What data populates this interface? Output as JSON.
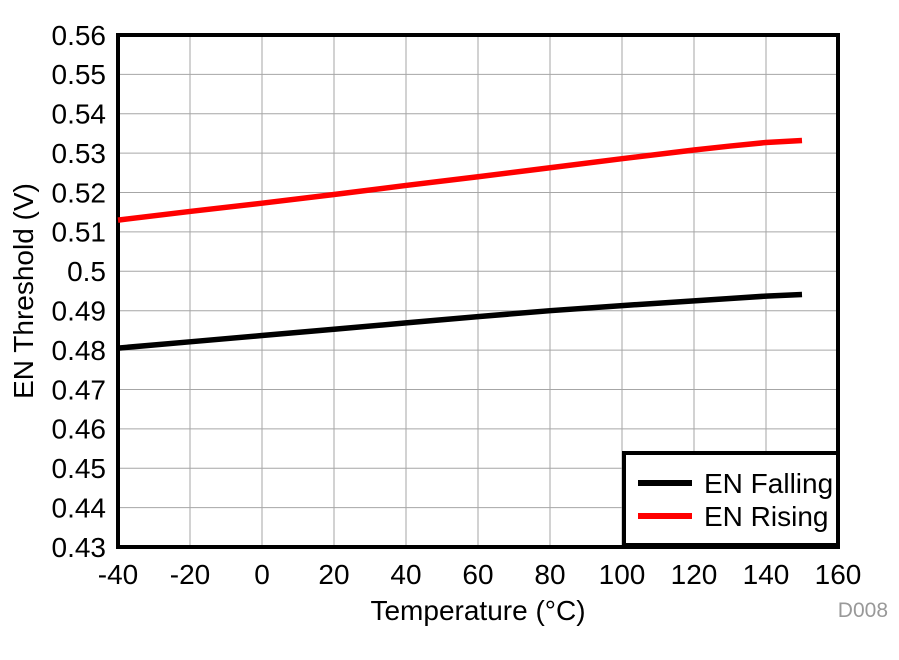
{
  "figure_id": "D008",
  "figure_id_color": "#999999",
  "chart_data": {
    "type": "line",
    "title": "",
    "xlabel": "Temperature (°C)",
    "ylabel": "EN Threshold (V)",
    "xlim": [
      -40,
      160
    ],
    "ylim": [
      0.43,
      0.56
    ],
    "xtick_labels": [
      "-40",
      "-20",
      "0",
      "20",
      "40",
      "60",
      "80",
      "100",
      "120",
      "140",
      "160"
    ],
    "ytick_labels": [
      "0.56",
      "0.55",
      "0.54",
      "0.53",
      "0.52",
      "0.51",
      "0.5",
      "0.49",
      "0.48",
      "0.47",
      "0.46",
      "0.45",
      "0.44",
      "0.43"
    ],
    "grid": true,
    "grid_color": "#a6a6a6",
    "border_color": "#000000",
    "background_color": "#ffffff",
    "legend": {
      "position": "lower-right",
      "border_color": "#000000",
      "entries": [
        "EN Falling",
        "EN Rising"
      ]
    },
    "x": [
      -40,
      -20,
      0,
      20,
      40,
      60,
      80,
      100,
      120,
      130,
      140,
      150
    ],
    "series": [
      {
        "name": "EN Falling",
        "color": "#000000",
        "values": [
          0.4805,
          0.4821,
          0.4837,
          0.4853,
          0.4869,
          0.4885,
          0.49,
          0.4913,
          0.4925,
          0.4931,
          0.4937,
          0.4941
        ]
      },
      {
        "name": "EN Rising",
        "color": "#ff0000",
        "values": [
          0.513,
          0.5152,
          0.5173,
          0.5195,
          0.5218,
          0.524,
          0.5263,
          0.5286,
          0.5308,
          0.5318,
          0.5327,
          0.5332
        ]
      }
    ]
  }
}
